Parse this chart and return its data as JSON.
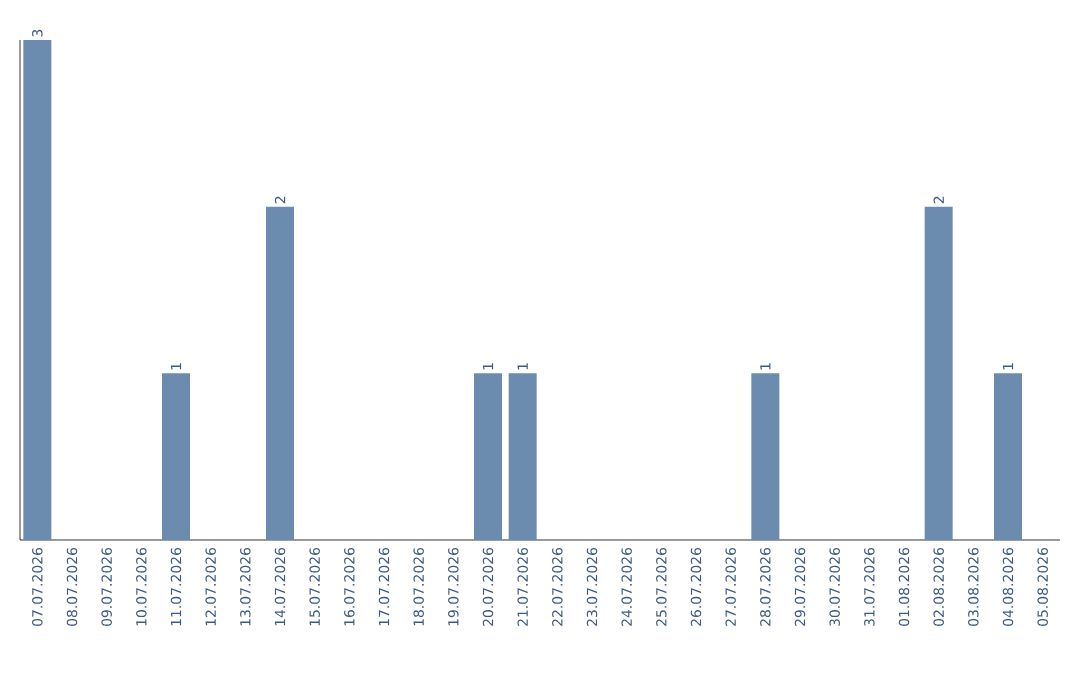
{
  "chart_data": {
    "type": "bar",
    "categories": [
      "07.07.2026",
      "08.07.2026",
      "09.07.2026",
      "10.07.2026",
      "11.07.2026",
      "12.07.2026",
      "13.07.2026",
      "14.07.2026",
      "15.07.2026",
      "16.07.2026",
      "17.07.2026",
      "18.07.2026",
      "19.07.2026",
      "20.07.2026",
      "21.07.2026",
      "22.07.2026",
      "23.07.2026",
      "24.07.2026",
      "25.07.2026",
      "26.07.2026",
      "27.07.2026",
      "28.07.2026",
      "29.07.2026",
      "30.07.2026",
      "31.07.2026",
      "01.08.2026",
      "02.08.2026",
      "03.08.2026",
      "04.08.2026",
      "05.08.2026"
    ],
    "values": [
      3,
      0,
      0,
      0,
      1,
      0,
      0,
      2,
      0,
      0,
      0,
      0,
      0,
      1,
      1,
      0,
      0,
      0,
      0,
      0,
      0,
      1,
      0,
      0,
      0,
      0,
      2,
      0,
      1,
      0
    ],
    "value_labels": [
      "3",
      null,
      null,
      null,
      "1",
      null,
      null,
      "2",
      null,
      null,
      null,
      null,
      null,
      "1",
      "1",
      null,
      null,
      null,
      null,
      null,
      null,
      "1",
      null,
      null,
      null,
      null,
      "2",
      null,
      "1",
      null
    ],
    "color": "#6b8cae",
    "ylim": [
      0,
      3
    ],
    "tick_labels": "x",
    "grid": false
  }
}
